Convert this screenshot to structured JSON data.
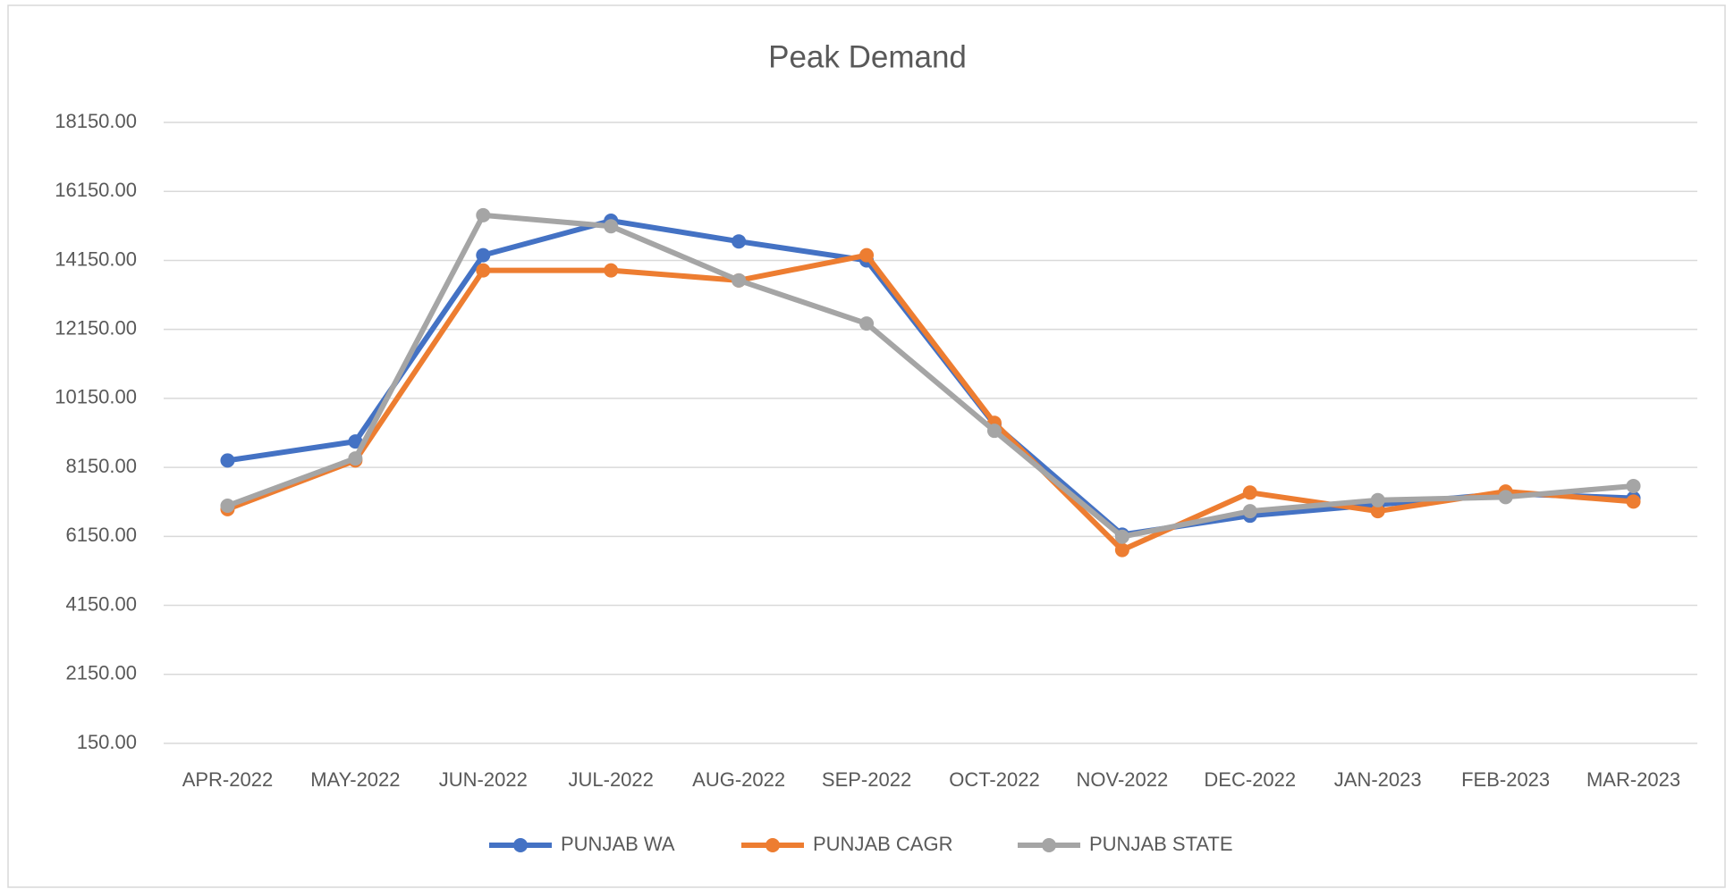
{
  "chart_data": {
    "type": "line",
    "title": "Peak Demand",
    "categories": [
      "APR-2022",
      "MAY-2022",
      "JUN-2022",
      "JUL-2022",
      "AUG-2022",
      "SEP-2022",
      "OCT-2022",
      "NOV-2022",
      "DEC-2022",
      "JAN-2023",
      "FEB-2023",
      "MAR-2023"
    ],
    "series": [
      {
        "name": "PUNJAB WA",
        "color": "#4472c4",
        "values": [
          8350,
          8900,
          14300,
          15300,
          14700,
          14150,
          9400,
          6200,
          6750,
          7070,
          7390,
          7260
        ]
      },
      {
        "name": "PUNJAB CAGR",
        "color": "#ed7d31",
        "values": [
          6940,
          8350,
          13860,
          13860,
          13570,
          14300,
          9440,
          5755,
          7420,
          6880,
          7450,
          7160
        ]
      },
      {
        "name": "PUNJAB STATE",
        "color": "#a5a5a5",
        "values": [
          7040,
          8410,
          15460,
          15140,
          13570,
          12320,
          9210,
          6140,
          6880,
          7200,
          7290,
          7610
        ]
      }
    ],
    "ylim": [
      150,
      18150
    ],
    "yticks": [
      {
        "value": 150,
        "label": "150.00"
      },
      {
        "value": 2150,
        "label": "2150.00"
      },
      {
        "value": 4150,
        "label": "4150.00"
      },
      {
        "value": 6150,
        "label": "6150.00"
      },
      {
        "value": 8150,
        "label": "8150.00"
      },
      {
        "value": 10150,
        "label": "10150.00"
      },
      {
        "value": 12150,
        "label": "12150.00"
      },
      {
        "value": 14150,
        "label": "14150.00"
      },
      {
        "value": 16150,
        "label": "16150.00"
      },
      {
        "value": 18150,
        "label": "18150.00"
      }
    ],
    "grid": true,
    "legend": "bottom"
  }
}
